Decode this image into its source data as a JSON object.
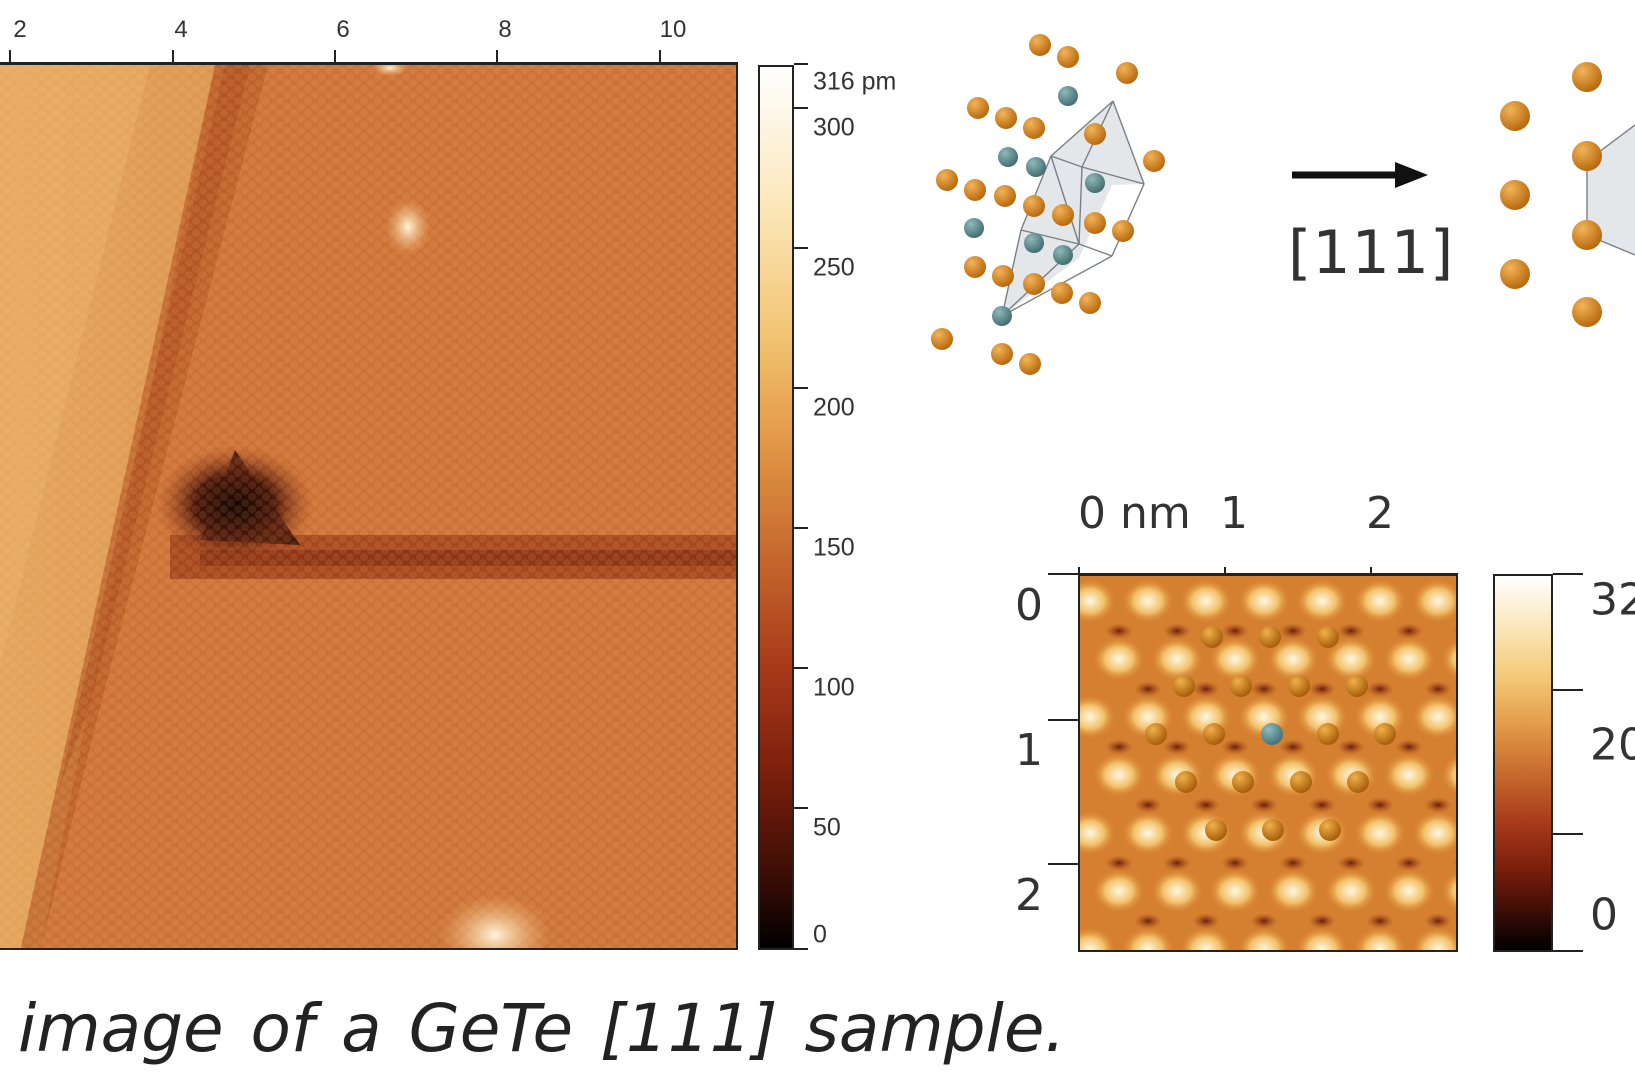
{
  "main_image": {
    "x_ticks": [
      "2",
      "4",
      "6",
      "8",
      "10"
    ],
    "colorbar": {
      "max_label": "316 pm",
      "tick_labels": [
        "300",
        "250",
        "200",
        "150",
        "100",
        "50",
        "0"
      ],
      "tick_values": [
        300,
        250,
        200,
        150,
        100,
        50,
        0
      ],
      "max_value": 316
    }
  },
  "crystal_diagram": {
    "direction_label": "[111]",
    "colors": {
      "te_atom": "#c97814",
      "ge_atom": "#5a8a8c",
      "cell_fill": "#dfe3e6"
    }
  },
  "inset_image": {
    "x_labels": [
      "0 nm",
      "1",
      "2"
    ],
    "y_labels": [
      "0",
      "1",
      "2"
    ],
    "colorbar_labels": [
      "32",
      "20",
      "0"
    ]
  },
  "caption": "image of a GeTe [111] sample."
}
